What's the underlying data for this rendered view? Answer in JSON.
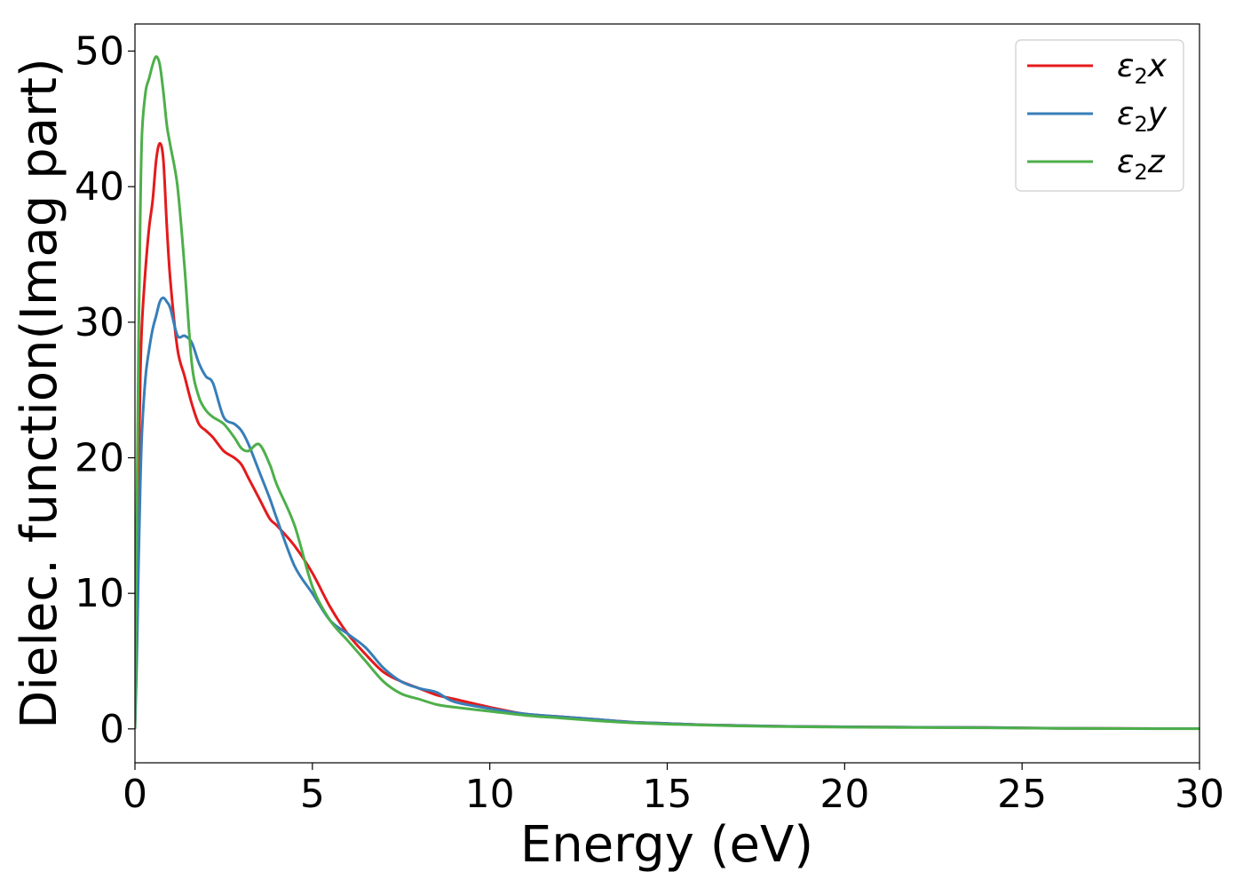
{
  "chart_data": {
    "type": "line",
    "xlabel": "Energy (eV)",
    "ylabel": "Dielec. function(Imag part)",
    "xlim": [
      0,
      30
    ],
    "ylim": [
      -2.5,
      52
    ],
    "xticks": [
      0,
      5,
      10,
      15,
      20,
      25,
      30
    ],
    "yticks": [
      0,
      10,
      20,
      30,
      40,
      50
    ],
    "grid": false,
    "legend_position": "top-right",
    "series": [
      {
        "name": "ε2x",
        "color": "#e41a1c",
        "x": [
          0,
          0.05,
          0.1,
          0.15,
          0.2,
          0.3,
          0.4,
          0.5,
          0.6,
          0.7,
          0.8,
          0.9,
          1.0,
          1.2,
          1.4,
          1.6,
          1.8,
          2.0,
          2.2,
          2.5,
          2.8,
          3.0,
          3.2,
          3.5,
          3.8,
          4.0,
          4.5,
          5.0,
          5.5,
          6.0,
          6.5,
          7.0,
          7.5,
          8.0,
          8.5,
          9.0,
          10,
          11,
          12,
          13,
          14,
          15,
          16,
          17,
          18,
          20,
          22,
          24,
          26,
          28,
          30
        ],
        "y": [
          0,
          8,
          18,
          26,
          30,
          34,
          37,
          39,
          42,
          43.2,
          42,
          37,
          33,
          28,
          26,
          24,
          22.5,
          22,
          21.5,
          20.5,
          20,
          19.5,
          18.5,
          17,
          15.5,
          15,
          13.5,
          11.5,
          9,
          7,
          5.5,
          4.2,
          3.5,
          3.0,
          2.5,
          2.2,
          1.6,
          1.1,
          0.9,
          0.7,
          0.5,
          0.4,
          0.3,
          0.25,
          0.2,
          0.15,
          0.12,
          0.1,
          0.05,
          0.03,
          0.02
        ]
      },
      {
        "name": "ε2y",
        "color": "#377eb8",
        "x": [
          0,
          0.05,
          0.1,
          0.15,
          0.2,
          0.3,
          0.4,
          0.5,
          0.6,
          0.7,
          0.8,
          0.9,
          1.0,
          1.2,
          1.4,
          1.6,
          1.8,
          2.0,
          2.2,
          2.5,
          2.8,
          3.0,
          3.2,
          3.5,
          3.8,
          4.0,
          4.5,
          5.0,
          5.5,
          6.0,
          6.5,
          7.0,
          7.5,
          8.0,
          8.5,
          9.0,
          10,
          11,
          12,
          13,
          14,
          15,
          16,
          17,
          18,
          20,
          22,
          24,
          26,
          28,
          30
        ],
        "y": [
          0,
          5,
          12,
          18,
          22,
          26,
          28,
          29.5,
          30.5,
          31.5,
          31.8,
          31.5,
          31,
          29,
          29,
          28.5,
          27,
          26,
          25.5,
          23,
          22.5,
          22,
          21,
          19,
          17,
          15.5,
          12,
          10,
          8,
          7,
          6,
          4.5,
          3.5,
          3.0,
          2.7,
          2.0,
          1.5,
          1.1,
          0.9,
          0.7,
          0.5,
          0.4,
          0.3,
          0.25,
          0.2,
          0.15,
          0.12,
          0.1,
          0.05,
          0.03,
          0.02
        ]
      },
      {
        "name": "ε2z",
        "color": "#4daf4a",
        "x": [
          0,
          0.05,
          0.1,
          0.15,
          0.2,
          0.3,
          0.4,
          0.5,
          0.6,
          0.7,
          0.8,
          0.9,
          1.0,
          1.2,
          1.4,
          1.6,
          1.8,
          2.0,
          2.2,
          2.5,
          2.8,
          3.0,
          3.2,
          3.5,
          3.8,
          4.0,
          4.5,
          5.0,
          5.5,
          6.0,
          6.5,
          7.0,
          7.5,
          8.0,
          8.5,
          9.0,
          10,
          11,
          12,
          13,
          14,
          15,
          16,
          17,
          18,
          20,
          22,
          24,
          26,
          28,
          30
        ],
        "y": [
          0,
          15,
          28,
          38,
          44,
          47,
          48,
          49,
          49.6,
          49,
          47,
          44.5,
          43,
          40,
          34,
          27,
          24.5,
          23.5,
          23,
          22.5,
          21.5,
          20.7,
          20.5,
          21,
          19.5,
          18,
          15,
          10.5,
          8,
          6.5,
          5,
          3.5,
          2.6,
          2.2,
          1.8,
          1.6,
          1.3,
          1.0,
          0.8,
          0.6,
          0.45,
          0.35,
          0.28,
          0.22,
          0.18,
          0.13,
          0.1,
          0.08,
          0.04,
          0.02,
          0.01
        ]
      }
    ]
  }
}
